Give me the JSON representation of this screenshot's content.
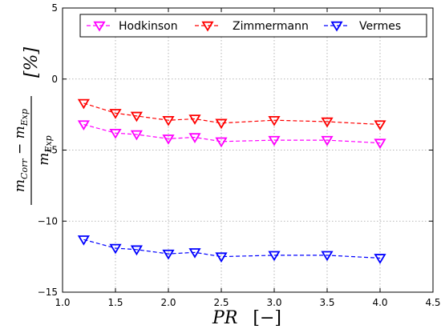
{
  "chart_data": {
    "type": "line",
    "title": "",
    "xlabel": "PR   [−]",
    "ylabel": "(m_Corr − m_Exp) / m_Exp   [%]",
    "xlim": [
      1.0,
      4.5
    ],
    "ylim": [
      -15,
      5
    ],
    "x_ticks": [
      1.0,
      1.5,
      2.0,
      2.5,
      3.0,
      3.5,
      4.0,
      4.5
    ],
    "y_ticks": [
      -15,
      -10,
      -5,
      0,
      5
    ],
    "x_tick_labels": [
      "1.0",
      "1.5",
      "2.0",
      "2.5",
      "3.0",
      "3.5",
      "4.0",
      "4.5"
    ],
    "y_tick_labels": [
      "−15",
      "−10",
      "−5",
      "0",
      "5"
    ],
    "grid": true,
    "legend_position": "top",
    "marker": "triangle-down",
    "series": [
      {
        "name": "Hodkinson",
        "color": "#ff00ff",
        "x": [
          1.2,
          1.5,
          1.7,
          2.0,
          2.25,
          2.5,
          3.0,
          3.5,
          4.0
        ],
        "y": [
          -3.2,
          -3.8,
          -3.9,
          -4.2,
          -4.1,
          -4.4,
          -4.3,
          -4.3,
          -4.5
        ]
      },
      {
        "name": "Zimmermann",
        "color": "#ff0000",
        "x": [
          1.2,
          1.5,
          1.7,
          2.0,
          2.25,
          2.5,
          3.0,
          3.5,
          4.0
        ],
        "y": [
          -1.7,
          -2.4,
          -2.6,
          -2.9,
          -2.8,
          -3.1,
          -2.9,
          -3.0,
          -3.2
        ]
      },
      {
        "name": "Vermes",
        "color": "#0000ff",
        "x": [
          1.2,
          1.5,
          1.7,
          2.0,
          2.25,
          2.5,
          3.0,
          3.5,
          4.0
        ],
        "y": [
          -11.3,
          -11.9,
          -12.0,
          -12.3,
          -12.2,
          -12.5,
          -12.4,
          -12.4,
          -12.6
        ]
      }
    ]
  }
}
